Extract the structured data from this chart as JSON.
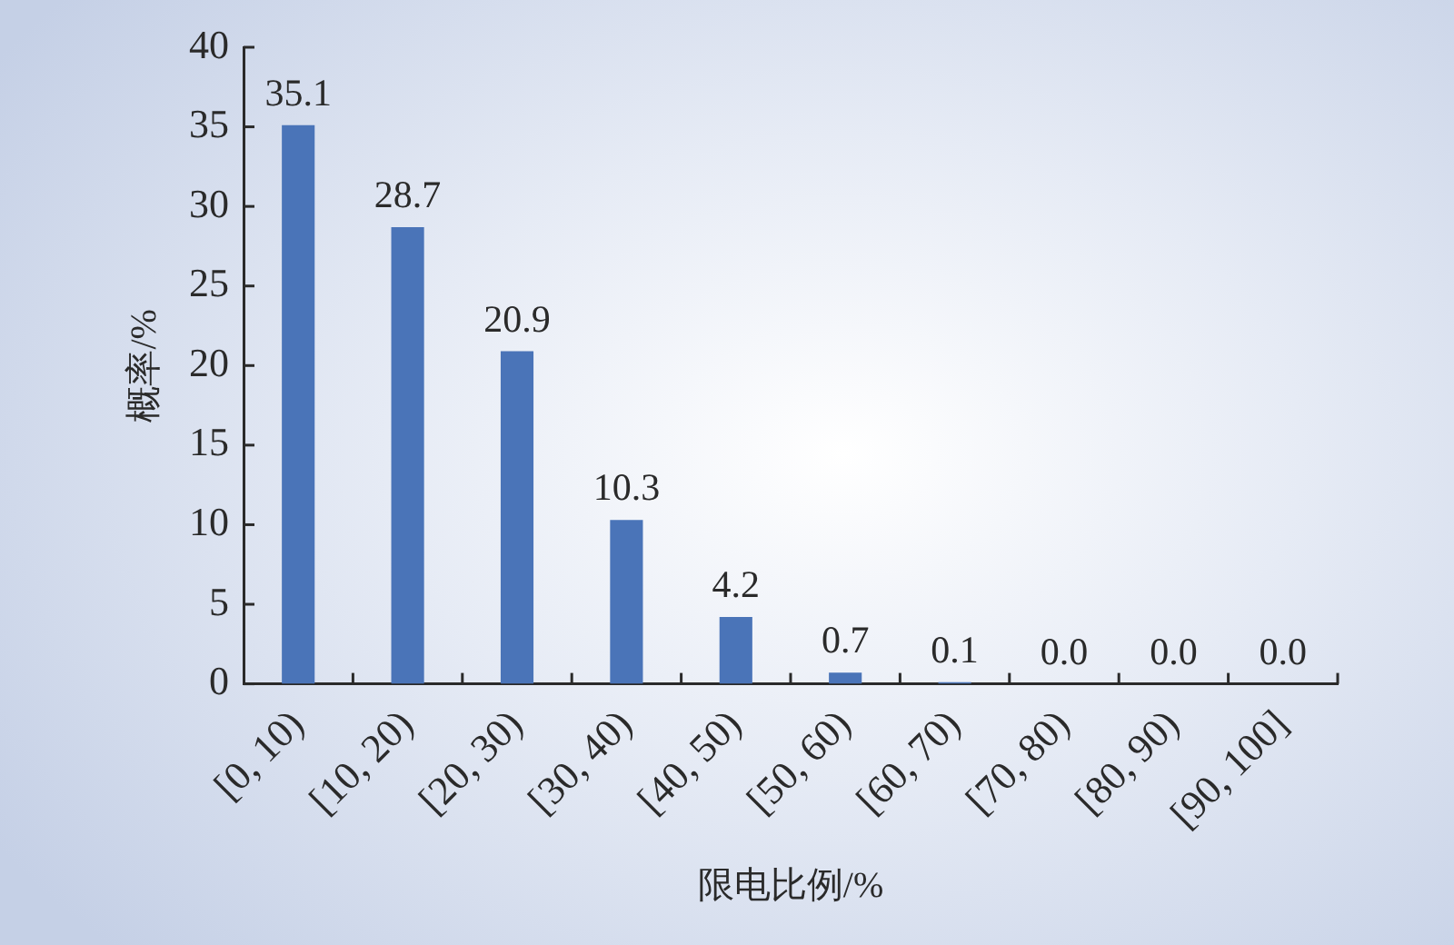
{
  "chart_data": {
    "type": "bar",
    "xlabel": "限电比例/%",
    "ylabel": "概率/%",
    "categories": [
      "[0, 10)",
      "[10, 20)",
      "[20, 30)",
      "[30, 40)",
      "[40, 50)",
      "[50, 60)",
      "[60, 70)",
      "[70, 80)",
      "[80, 90)",
      "[90, 100]"
    ],
    "values": [
      35.1,
      28.7,
      20.9,
      10.3,
      4.2,
      0.7,
      0.1,
      0.0,
      0.0,
      0.0
    ],
    "value_labels": [
      "35.1",
      "28.7",
      "20.9",
      "10.3",
      "4.2",
      "0.7",
      "0.1",
      "0.0",
      "0.0",
      "0.0"
    ],
    "color": "#4a74b8",
    "ylim": [
      0,
      40
    ],
    "yticks": [
      0,
      5,
      10,
      15,
      20,
      25,
      30,
      35,
      40
    ],
    "grid": false,
    "legend": false
  }
}
